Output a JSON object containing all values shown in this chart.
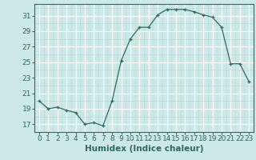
{
  "x": [
    0,
    1,
    2,
    3,
    4,
    5,
    6,
    7,
    8,
    9,
    10,
    11,
    12,
    13,
    14,
    15,
    16,
    17,
    18,
    19,
    20,
    21,
    22,
    23
  ],
  "y": [
    20.0,
    19.0,
    19.2,
    18.8,
    18.5,
    17.0,
    17.2,
    16.8,
    20.0,
    25.2,
    28.0,
    29.5,
    29.5,
    31.1,
    31.8,
    31.8,
    31.8,
    31.5,
    31.1,
    30.8,
    29.5,
    24.8,
    24.8,
    22.5
  ],
  "line_color": "#2e6b5e",
  "marker": "+",
  "marker_color": "#2e6b5e",
  "bg_color": "#cce9e7",
  "grid_major_color": "#ffffff",
  "grid_minor_color": "#b8d8d6",
  "xlabel": "Humidex (Indice chaleur)",
  "xlim": [
    -0.5,
    23.5
  ],
  "ylim": [
    16.0,
    32.5
  ],
  "yticks": [
    17,
    19,
    21,
    23,
    25,
    27,
    29,
    31
  ],
  "xticks": [
    0,
    1,
    2,
    3,
    4,
    5,
    6,
    7,
    8,
    9,
    10,
    11,
    12,
    13,
    14,
    15,
    16,
    17,
    18,
    19,
    20,
    21,
    22,
    23
  ],
  "tick_color": "#2e6b5e",
  "label_fontsize": 7.5,
  "tick_fontsize": 6.5
}
